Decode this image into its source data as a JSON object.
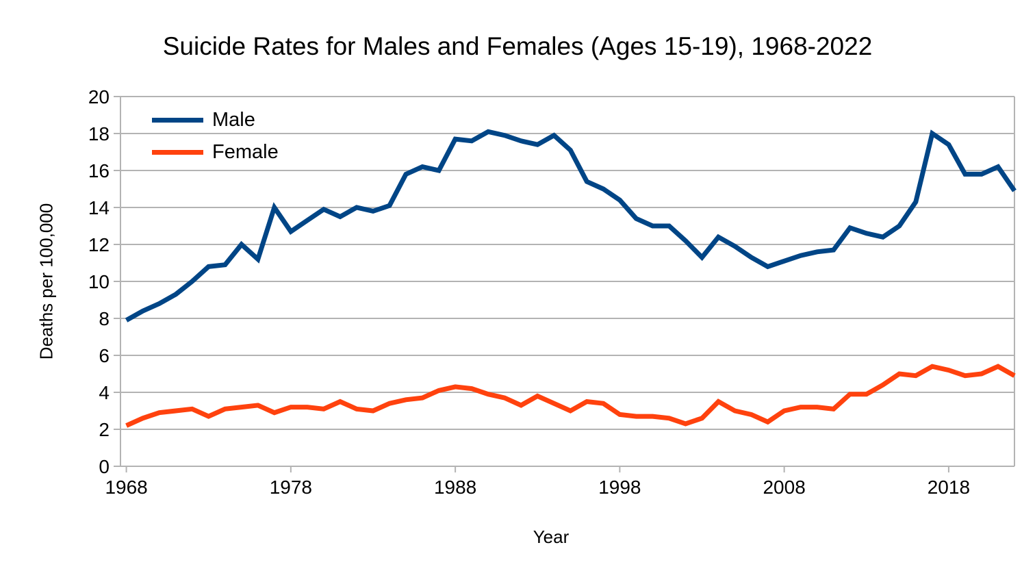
{
  "chart_data": {
    "type": "line",
    "title": "Suicide Rates for Males and Females (Ages 15-19), 1968-2022",
    "xlabel": "Year",
    "ylabel": "Deaths per 100,000",
    "ylim": [
      0,
      20
    ],
    "ytick_step": 2,
    "yticks": [
      0,
      2,
      4,
      6,
      8,
      10,
      12,
      14,
      16,
      18,
      20
    ],
    "xticks": [
      1968,
      1978,
      1988,
      1998,
      2008,
      2018
    ],
    "grid": "horizontal",
    "legend_position": "top-left-inside",
    "years": [
      1968,
      1969,
      1970,
      1971,
      1972,
      1973,
      1974,
      1975,
      1976,
      1977,
      1978,
      1979,
      1980,
      1981,
      1982,
      1983,
      1984,
      1985,
      1986,
      1987,
      1988,
      1989,
      1990,
      1991,
      1992,
      1993,
      1994,
      1995,
      1996,
      1997,
      1998,
      1999,
      2000,
      2001,
      2002,
      2003,
      2004,
      2005,
      2006,
      2007,
      2008,
      2009,
      2010,
      2011,
      2012,
      2013,
      2014,
      2015,
      2016,
      2017,
      2018,
      2019,
      2020,
      2021,
      2022
    ],
    "series": [
      {
        "name": "Male",
        "color": "#004586",
        "values": [
          7.9,
          8.4,
          8.8,
          9.3,
          10.0,
          10.8,
          10.9,
          12.0,
          11.2,
          14.0,
          12.7,
          13.3,
          13.9,
          13.5,
          14.0,
          13.8,
          14.1,
          15.8,
          16.2,
          16.0,
          17.7,
          17.6,
          18.1,
          17.9,
          17.6,
          17.4,
          17.9,
          17.1,
          15.4,
          15.0,
          14.4,
          13.4,
          13.0,
          13.0,
          12.2,
          11.3,
          12.4,
          11.9,
          11.3,
          10.8,
          11.1,
          11.4,
          11.6,
          11.7,
          12.9,
          12.6,
          12.4,
          13.0,
          14.3,
          18.0,
          17.4,
          15.8,
          15.8,
          16.2,
          14.9
        ]
      },
      {
        "name": "Female",
        "color": "#FF420E",
        "values": [
          2.2,
          2.6,
          2.9,
          3.0,
          3.1,
          2.7,
          3.1,
          3.2,
          3.3,
          2.9,
          3.2,
          3.2,
          3.1,
          3.5,
          3.1,
          3.0,
          3.4,
          3.6,
          3.7,
          4.1,
          4.3,
          4.2,
          3.9,
          3.7,
          3.3,
          3.8,
          3.4,
          3.0,
          3.5,
          3.4,
          2.8,
          2.7,
          2.7,
          2.6,
          2.3,
          2.6,
          3.5,
          3.0,
          2.8,
          2.4,
          3.0,
          3.2,
          3.2,
          3.1,
          3.9,
          3.9,
          4.4,
          5.0,
          4.9,
          5.4,
          5.2,
          4.9,
          5.0,
          5.4,
          4.9
        ]
      }
    ],
    "colors": {
      "grid": "#b3b3b3",
      "axis": "#b3b3b3",
      "text": "#000000",
      "background": "#ffffff"
    }
  }
}
